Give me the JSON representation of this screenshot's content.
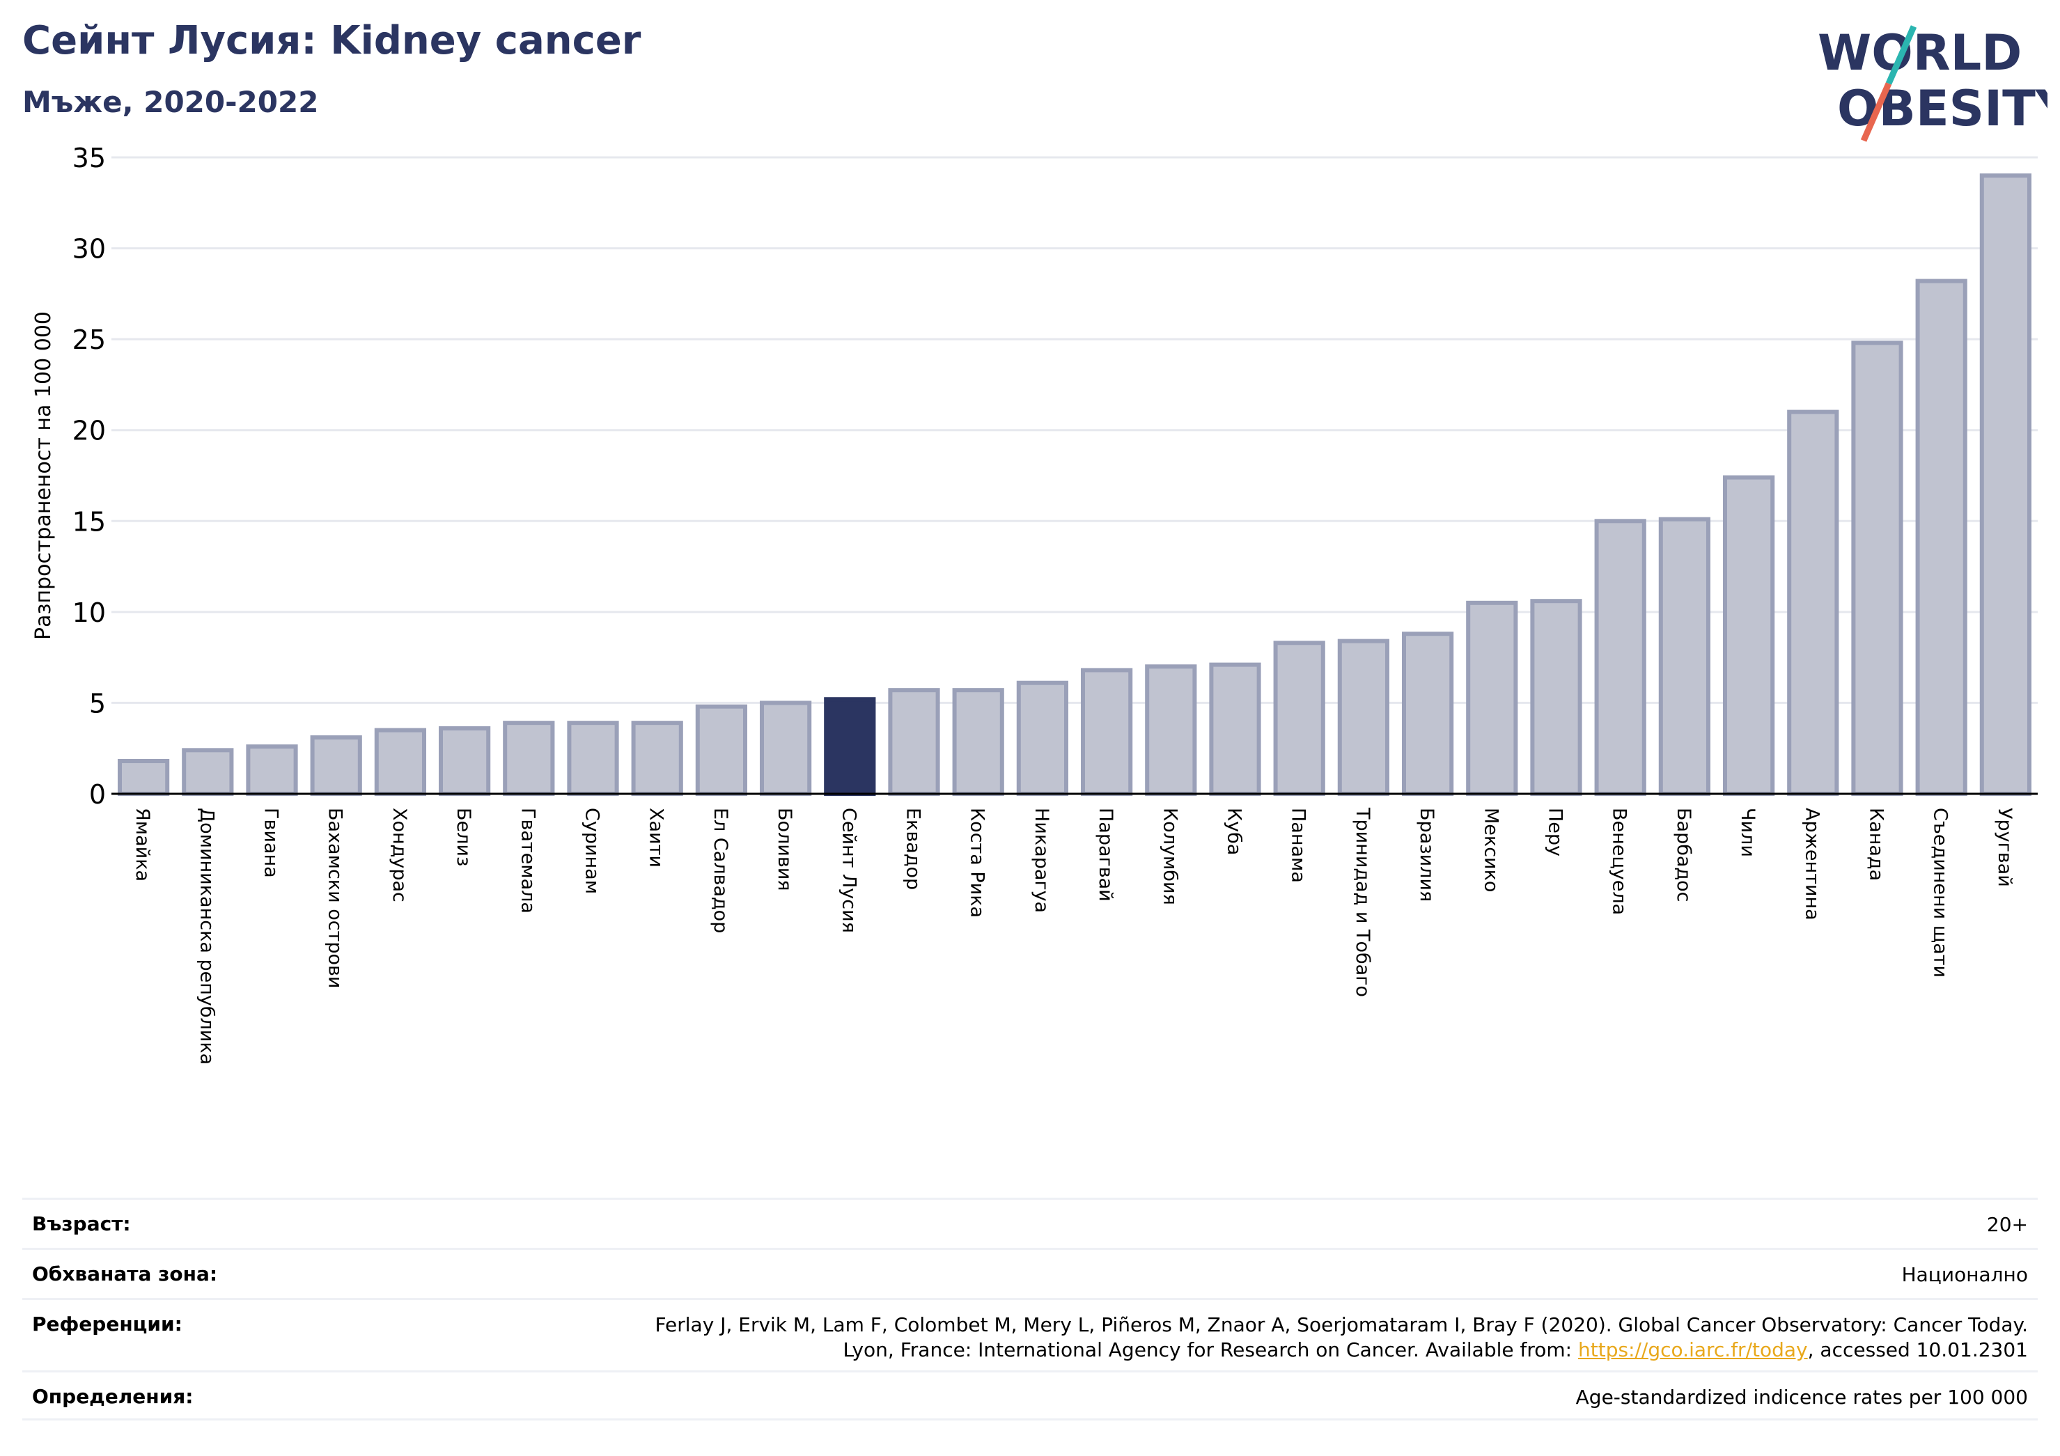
{
  "header": {
    "title": "Сейнт Лусия: Kidney cancer",
    "subtitle": "Мъже, 2020-2022"
  },
  "logo": {
    "line1": "WORLD",
    "line2": "OBESITY",
    "colors": {
      "text": "#2b3561",
      "slash_top": "#2bb5b0",
      "slash_bottom": "#e8664f"
    }
  },
  "colors": {
    "bar": "#c0c3d0",
    "bar_border": "#9aa0b8",
    "highlight": "#2b3561",
    "grid": "#e6e8ee",
    "axis": "#000000"
  },
  "chart_data": {
    "type": "bar",
    "ylabel": "Разпространеност  на 100 000",
    "ylim": [
      0,
      35
    ],
    "yticks": [
      0,
      5,
      10,
      15,
      20,
      25,
      30,
      35
    ],
    "grid": true,
    "highlight": "Сейнт Лусия",
    "categories": [
      "Ямайка",
      "Доминиканска република",
      "Гвиана",
      "Бахамски острови",
      "Хондурас",
      "Белиз",
      "Гватемала",
      "Суринам",
      "Хаити",
      "Ел Салвадор",
      "Боливия",
      "Сейнт Лусия",
      "Еквадор",
      "Коста Рика",
      "Никарагуа",
      "Парагвай",
      "Колумбия",
      "Куба",
      "Панама",
      "Тринидад и Тобаго",
      "Бразилия",
      "Мексико",
      "Перу",
      "Венецуела",
      "Барбадос",
      "Чили",
      "Аржентина",
      "Канада",
      "Съединени щати",
      "Уругвай"
    ],
    "values": [
      1.8,
      2.4,
      2.6,
      3.1,
      3.5,
      3.6,
      3.9,
      3.9,
      3.9,
      4.8,
      5.0,
      5.2,
      5.7,
      5.7,
      6.1,
      6.8,
      7.0,
      7.1,
      8.3,
      8.4,
      8.8,
      10.5,
      10.6,
      15.0,
      15.1,
      17.4,
      21.0,
      24.8,
      28.2,
      34.0
    ]
  },
  "meta": {
    "age_label": "Възраст:",
    "age_value": "20+",
    "coverage_label": "Обхваната зона:",
    "coverage_value": "Национално",
    "references_label": "Референции:",
    "references_line1": "Ferlay J, Ervik M, Lam F, Colombet M, Mery L, Piñeros M, Znaor A, Soerjomataram I, Bray F (2020). Global Cancer Observatory: Cancer Today.",
    "references_line2_pre": "Lyon, France: International Agency for Research on Cancer. Available from: ",
    "references_link": "https://gco.iarc.fr/today",
    "references_line2_post": ", accessed 10.01.2301",
    "definitions_label": "Определения:",
    "definitions_value": "Age-standardized indicence rates per 100 000"
  }
}
